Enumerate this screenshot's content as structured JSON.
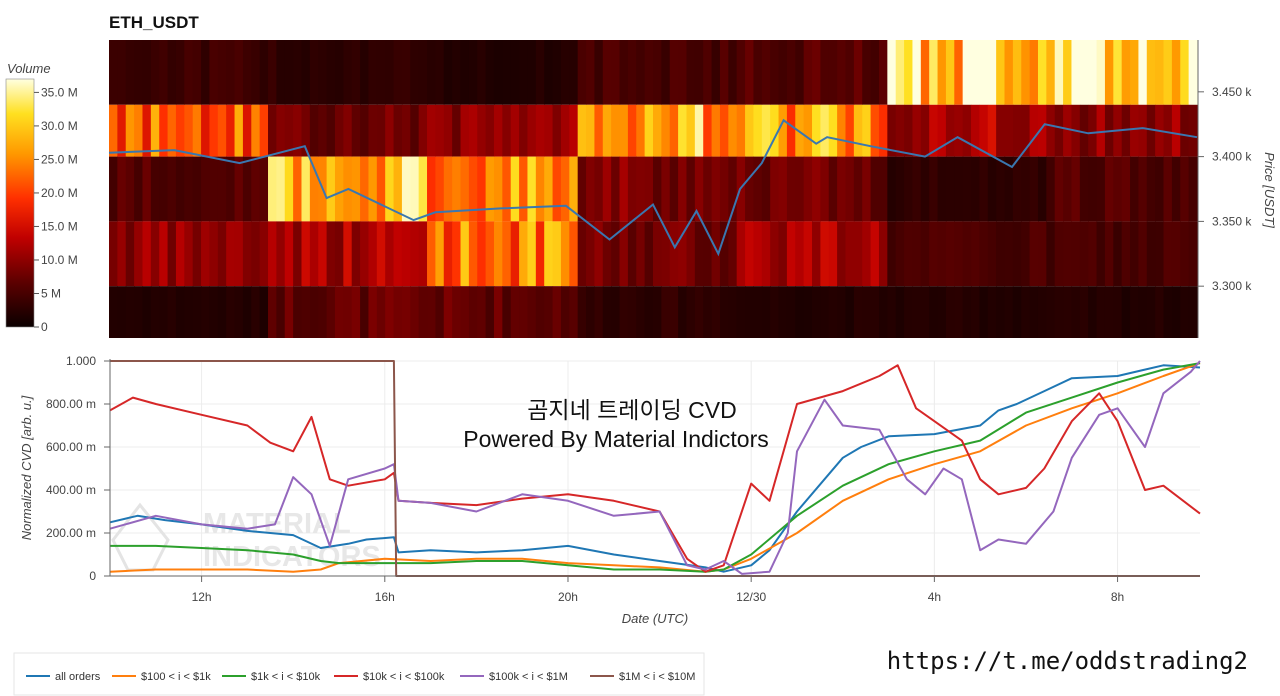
{
  "header": {
    "title": "ETH_USDT"
  },
  "colorbar": {
    "title": "Volume",
    "ticks": [
      "35.0 M",
      "30.0 M",
      "25.0 M",
      "20.0 M",
      "15.0 M",
      "10.0 M",
      "5 M",
      "0"
    ]
  },
  "watermark": {
    "line1": "곰지네 트레이딩 CVD",
    "line2": "Powered By Material Indictors",
    "logo_line1": "MATERIAL",
    "logo_line2": "INDICATORS"
  },
  "footer": {
    "url": "https://t.me/oddstrading2"
  },
  "colors": {
    "all_orders": "#1f77b4",
    "s100": "#ff7f0e",
    "s1k": "#2ca02c",
    "s10k": "#d62728",
    "s100k": "#9467bd",
    "s1m": "#8c564b",
    "price": "#3a77b0"
  },
  "chart_data": [
    {
      "type": "heatmap",
      "title": "ETH_USDT",
      "ylabel": "Price [USDT]",
      "x_ticks": [
        "12h",
        "16h",
        "20h",
        "12/30",
        "4h",
        "8h"
      ],
      "y_ticks": [
        "3.450 k",
        "3.400 k",
        "3.350 k",
        "3.300 k"
      ],
      "ylim": [
        3260,
        3490
      ],
      "colorbar_range": [
        0,
        37
      ],
      "colormap": "hot",
      "row_bands_price": [
        [
          3440,
          3490
        ],
        [
          3400,
          3440
        ],
        [
          3350,
          3400
        ],
        [
          3300,
          3350
        ],
        [
          3260,
          3300
        ]
      ],
      "column_groups_volume_M": [
        [
          4,
          22,
          6,
          10,
          2
        ],
        [
          3,
          8,
          28,
          12,
          7
        ],
        [
          2,
          10,
          26,
          24,
          7
        ],
        [
          5,
          28,
          9,
          8,
          3
        ],
        [
          6,
          27,
          8,
          12,
          2
        ],
        [
          32,
          12,
          3,
          5,
          2
        ],
        [
          33,
          10,
          6,
          5,
          2
        ]
      ],
      "price_series": {
        "name": "price",
        "x": [
          0,
          0.06,
          0.12,
          0.18,
          0.2,
          0.22,
          0.28,
          0.3,
          0.36,
          0.42,
          0.46,
          0.5,
          0.52,
          0.54,
          0.56,
          0.58,
          0.6,
          0.62,
          0.65,
          0.66,
          0.7,
          0.75,
          0.78,
          0.83,
          0.86,
          0.9,
          0.95,
          1.0
        ],
        "y": [
          3403,
          3405,
          3395,
          3408,
          3368,
          3375,
          3351,
          3357,
          3360,
          3362,
          3336,
          3363,
          3330,
          3358,
          3325,
          3375,
          3395,
          3428,
          3410,
          3415,
          3408,
          3400,
          3415,
          3392,
          3425,
          3418,
          3422,
          3415
        ]
      }
    },
    {
      "type": "line",
      "xlabel": "Date (UTC)",
      "ylabel": "Normalized CVD [arb. u.]",
      "x_ticks": [
        "12h",
        "16h",
        "20h",
        "12/30",
        "4h",
        "8h"
      ],
      "y_ticks": [
        "1.000",
        "800.00 m",
        "600.00 m",
        "400.00 m",
        "200.00 m",
        "0"
      ],
      "ylim": [
        0,
        1
      ],
      "x_unit": "hours since 10h UTC",
      "series": [
        {
          "name": "all orders",
          "x": [
            0,
            0.6,
            1.2,
            2.0,
            3.0,
            4.0,
            4.6,
            5.2,
            5.6,
            6.2,
            6.3,
            7.0,
            8.0,
            9.0,
            10.0,
            11.0,
            12.0,
            13.0,
            13.4,
            14.0,
            14.4,
            15.0,
            16.0,
            16.4,
            17.0,
            18.0,
            19.0,
            19.4,
            19.8,
            20.4,
            21.0,
            22.0,
            23.0,
            23.8
          ],
          "y": [
            0.25,
            0.28,
            0.26,
            0.24,
            0.21,
            0.19,
            0.13,
            0.15,
            0.17,
            0.18,
            0.11,
            0.12,
            0.11,
            0.12,
            0.14,
            0.1,
            0.07,
            0.04,
            0.02,
            0.05,
            0.12,
            0.3,
            0.55,
            0.6,
            0.65,
            0.66,
            0.7,
            0.77,
            0.8,
            0.86,
            0.92,
            0.93,
            0.98,
            0.97
          ]
        },
        {
          "name": "$100 < i < $1k",
          "x": [
            0,
            1.0,
            2.0,
            3.0,
            4.0,
            4.6,
            5.0,
            6.0,
            7.0,
            8.0,
            9.0,
            10.0,
            11.0,
            12.0,
            13.0,
            13.4,
            14.0,
            15.0,
            16.0,
            17.0,
            18.0,
            19.0,
            20.0,
            21.0,
            22.0,
            23.0,
            23.8
          ],
          "y": [
            0.02,
            0.03,
            0.03,
            0.03,
            0.02,
            0.03,
            0.06,
            0.08,
            0.07,
            0.08,
            0.08,
            0.06,
            0.05,
            0.04,
            0.02,
            0.03,
            0.08,
            0.2,
            0.35,
            0.45,
            0.52,
            0.58,
            0.7,
            0.78,
            0.85,
            0.93,
            0.99
          ]
        },
        {
          "name": "$1k < i < $10k",
          "x": [
            0,
            1.0,
            2.0,
            3.0,
            4.0,
            4.6,
            5.0,
            6.0,
            7.0,
            8.0,
            9.0,
            10.0,
            11.0,
            12.0,
            13.0,
            13.4,
            14.0,
            15.0,
            16.0,
            17.0,
            18.0,
            19.0,
            20.0,
            21.0,
            22.0,
            23.0,
            23.8
          ],
          "y": [
            0.14,
            0.14,
            0.13,
            0.12,
            0.1,
            0.07,
            0.06,
            0.06,
            0.06,
            0.07,
            0.07,
            0.05,
            0.03,
            0.03,
            0.02,
            0.03,
            0.1,
            0.28,
            0.42,
            0.52,
            0.58,
            0.63,
            0.76,
            0.83,
            0.9,
            0.96,
            0.99
          ]
        },
        {
          "name": "$10k < i < $100k",
          "x": [
            0,
            0.5,
            1.0,
            2.0,
            3.0,
            3.5,
            4.0,
            4.4,
            4.8,
            5.2,
            6.0,
            6.2,
            6.3,
            7.0,
            8.0,
            9.0,
            10.0,
            11.0,
            12.0,
            12.6,
            13.0,
            13.4,
            14.0,
            14.4,
            15.0,
            16.0,
            16.8,
            17.2,
            17.6,
            18.0,
            18.6,
            19.0,
            19.4,
            20.0,
            20.4,
            21.0,
            21.6,
            22.0,
            22.6,
            23.0,
            23.8
          ],
          "y": [
            0.77,
            0.83,
            0.8,
            0.75,
            0.7,
            0.62,
            0.58,
            0.74,
            0.45,
            0.42,
            0.45,
            0.48,
            0.35,
            0.34,
            0.33,
            0.36,
            0.38,
            0.35,
            0.3,
            0.08,
            0.02,
            0.05,
            0.43,
            0.35,
            0.8,
            0.86,
            0.93,
            0.98,
            0.78,
            0.72,
            0.63,
            0.45,
            0.38,
            0.41,
            0.5,
            0.72,
            0.85,
            0.72,
            0.4,
            0.42,
            0.29
          ]
        },
        {
          "name": "$100k < i < $1M",
          "x": [
            0,
            1.0,
            2.0,
            3.0,
            3.6,
            4.0,
            4.4,
            4.8,
            5.2,
            6.0,
            6.2,
            6.3,
            7.0,
            8.0,
            9.0,
            10.0,
            11.0,
            12.0,
            12.6,
            13.0,
            13.4,
            13.8,
            14.4,
            14.8,
            15.0,
            15.6,
            16.0,
            16.8,
            17.4,
            17.8,
            18.2,
            18.6,
            19.0,
            19.4,
            20.0,
            20.6,
            21.0,
            21.6,
            22.0,
            22.6,
            23.0,
            23.6,
            23.8
          ],
          "y": [
            0.22,
            0.28,
            0.24,
            0.22,
            0.24,
            0.46,
            0.38,
            0.14,
            0.45,
            0.5,
            0.52,
            0.35,
            0.34,
            0.3,
            0.38,
            0.35,
            0.28,
            0.3,
            0.05,
            0.03,
            0.07,
            0.01,
            0.02,
            0.2,
            0.58,
            0.82,
            0.7,
            0.68,
            0.45,
            0.38,
            0.5,
            0.45,
            0.12,
            0.17,
            0.15,
            0.3,
            0.55,
            0.75,
            0.78,
            0.6,
            0.85,
            0.95,
            1.0
          ]
        },
        {
          "name": "$1M < i < $10M",
          "x": [
            0,
            6.2,
            6.25,
            23.8
          ],
          "y": [
            1.0,
            1.0,
            0.0,
            0.0
          ]
        }
      ]
    }
  ]
}
